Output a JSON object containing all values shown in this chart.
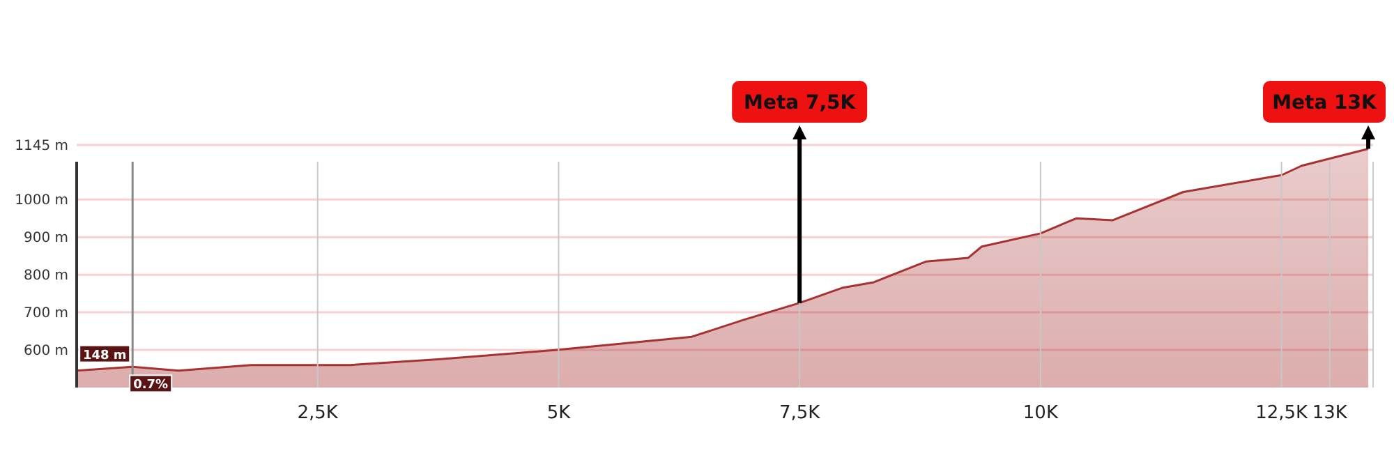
{
  "chart_data": {
    "type": "area",
    "x": [
      0,
      0.58,
      1.06,
      1.81,
      2.84,
      3.75,
      4.98,
      6.38,
      6.92,
      7.5,
      7.94,
      8.27,
      8.81,
      9.25,
      9.39,
      10.0,
      10.37,
      10.75,
      11.48,
      12.5,
      12.71,
      13.4
    ],
    "series": [
      {
        "color": "#a83232",
        "values": [
          545,
          555,
          545,
          560,
          560,
          575,
          600,
          635,
          680,
          725,
          765,
          780,
          835,
          845,
          875,
          910,
          950,
          945,
          1020,
          1065,
          1090,
          1135
        ]
      }
    ],
    "xlim": [
      0,
      13.45
    ],
    "ylim": [
      500,
      1160
    ],
    "xticks": [
      {
        "value": 2.5,
        "label": "2,5K"
      },
      {
        "value": 5,
        "label": "5K"
      },
      {
        "value": 7.5,
        "label": "7,5K"
      },
      {
        "value": 10,
        "label": "10K"
      },
      {
        "value": 12.5,
        "label": "12,5K"
      },
      {
        "value": 13,
        "label": "13K"
      }
    ],
    "yticks": [
      {
        "value": 600,
        "label": "600 m"
      },
      {
        "value": 700,
        "label": "700 m"
      },
      {
        "value": 800,
        "label": "800 m"
      },
      {
        "value": 900,
        "label": "900 m"
      },
      {
        "value": 1000,
        "label": "1000 m"
      },
      {
        "value": 1145,
        "label": "1145 m"
      }
    ],
    "grid": true,
    "ref_lines": [
      {
        "axis": "x",
        "value": 0.58,
        "color": "#888888"
      }
    ],
    "annotations": [
      {
        "text": "Meta 7,5K",
        "x": 7.5,
        "y": 725
      },
      {
        "text": "Meta 13K",
        "x": 13.4,
        "y": 1135
      },
      {
        "text": "148 m",
        "x": 0.58,
        "y": 560
      },
      {
        "text": "0.7%",
        "x": 0.58,
        "y": 540
      }
    ]
  }
}
